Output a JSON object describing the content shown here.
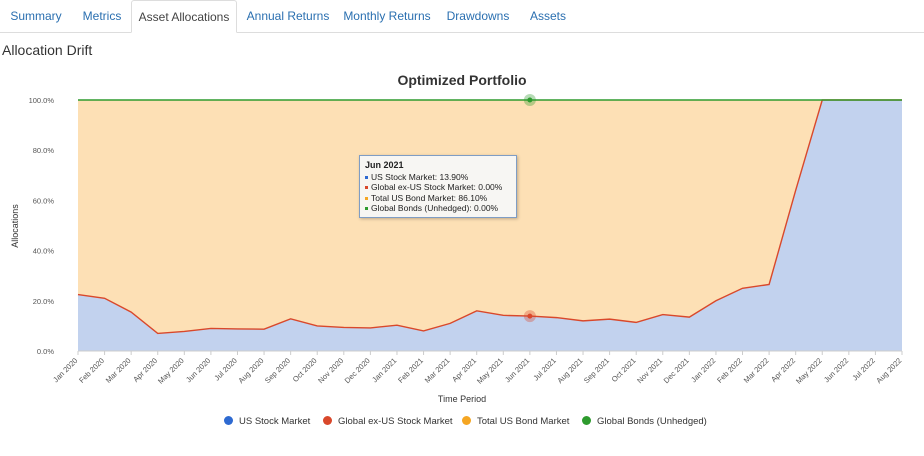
{
  "tabs": [
    {
      "label": "Summary",
      "active": false
    },
    {
      "label": "Metrics",
      "active": false
    },
    {
      "label": "Asset Allocations",
      "active": true
    },
    {
      "label": "Annual Returns",
      "active": false
    },
    {
      "label": "Monthly Returns",
      "active": false
    },
    {
      "label": "Drawdowns",
      "active": false
    },
    {
      "label": "Assets",
      "active": false
    }
  ],
  "section_title": "Allocation Drift",
  "chart_data": {
    "type": "area",
    "title": "Optimized Portfolio",
    "xlabel": "Time Period",
    "ylabel": "Allocations",
    "ylim": [
      0,
      100
    ],
    "y_ticks": [
      "0.0%",
      "20.0%",
      "40.0%",
      "60.0%",
      "80.0%",
      "100.0%"
    ],
    "categories": [
      "Jan 2020",
      "Feb 2020",
      "Mar 2020",
      "Apr 2020",
      "May 2020",
      "Jun 2020",
      "Jul 2020",
      "Aug 2020",
      "Sep 2020",
      "Oct 2020",
      "Nov 2020",
      "Dec 2020",
      "Jan 2021",
      "Feb 2021",
      "Mar 2021",
      "Apr 2021",
      "May 2021",
      "Jun 2021",
      "Jul 2021",
      "Aug 2021",
      "Sep 2021",
      "Oct 2021",
      "Nov 2021",
      "Dec 2021",
      "Jan 2022",
      "Feb 2022",
      "Mar 2022",
      "Apr 2022",
      "May 2022",
      "Jun 2022",
      "Jul 2022",
      "Aug 2022"
    ],
    "series": [
      {
        "name": "US Stock Market",
        "color": "#2e6ad1",
        "fill": "#c2d2ee",
        "values": [
          22.5,
          21,
          15.5,
          7,
          7.8,
          9,
          8.8,
          8.7,
          12.8,
          10,
          9.4,
          9.2,
          10.3,
          8,
          11,
          16,
          14.2,
          13.9,
          13.3,
          12,
          12.7,
          11.4,
          14.5,
          13.5,
          20,
          25,
          26.5,
          64,
          100,
          100,
          100,
          100
        ]
      },
      {
        "name": "Global ex-US Stock Market",
        "color": "#d9482b",
        "values": [
          0,
          0,
          0,
          0,
          0,
          0,
          0,
          0,
          0,
          0,
          0,
          0,
          0,
          0,
          0,
          0,
          0,
          0,
          0,
          0,
          0,
          0,
          0,
          0,
          0,
          0,
          0,
          0,
          0,
          0,
          0,
          0
        ]
      },
      {
        "name": "Total US Bond Market",
        "color": "#f5a623",
        "fill": "#fde0b5",
        "values": [
          77.5,
          79,
          84.5,
          93,
          92.2,
          91,
          91.2,
          91.3,
          87.2,
          90,
          90.6,
          90.8,
          89.7,
          92,
          89,
          84,
          85.8,
          86.1,
          86.7,
          88,
          87.3,
          88.6,
          85.5,
          86.5,
          80,
          75,
          73.5,
          36,
          0,
          0,
          0,
          0
        ]
      },
      {
        "name": "Global Bonds (Unhedged)",
        "color": "#2e9b2e",
        "values": [
          0,
          0,
          0,
          0,
          0,
          0,
          0,
          0,
          0,
          0,
          0,
          0,
          0,
          0,
          0,
          0,
          0,
          0,
          0,
          0,
          0,
          0,
          0,
          0,
          0,
          0,
          0,
          0,
          0,
          0,
          0,
          0
        ]
      }
    ],
    "legend_position": "bottom-center",
    "tooltip": {
      "title": "Jun 2021",
      "rows": [
        "US Stock Market: 13.90%",
        "Global ex-US Stock Market: 0.00%",
        "Total US Bond Market: 86.10%",
        "Global Bonds (Unhedged): 0.00%"
      ]
    }
  }
}
